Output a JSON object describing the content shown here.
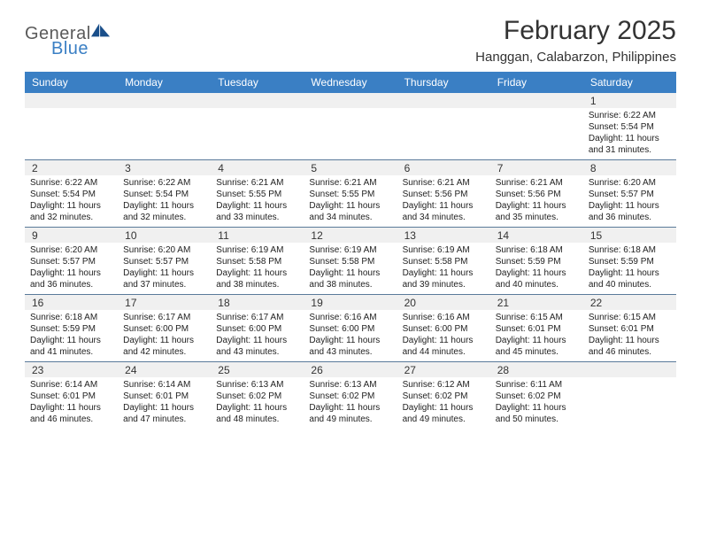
{
  "brand": {
    "text_general": "General",
    "text_blue": "Blue",
    "flag_color": "#1a4f8a",
    "accent_color": "#3a7fc4"
  },
  "title": {
    "month": "February 2025",
    "location": "Hanggan, Calabarzon, Philippines"
  },
  "colors": {
    "header_bg": "#3a7fc4",
    "header_text": "#ffffff",
    "daynum_bg": "#f0f0f0",
    "rule": "#5a7a9a",
    "text": "#222222"
  },
  "day_headers": [
    "Sunday",
    "Monday",
    "Tuesday",
    "Wednesday",
    "Thursday",
    "Friday",
    "Saturday"
  ],
  "weeks": [
    [
      {
        "n": "",
        "sunrise": "",
        "sunset": "",
        "daylight": ""
      },
      {
        "n": "",
        "sunrise": "",
        "sunset": "",
        "daylight": ""
      },
      {
        "n": "",
        "sunrise": "",
        "sunset": "",
        "daylight": ""
      },
      {
        "n": "",
        "sunrise": "",
        "sunset": "",
        "daylight": ""
      },
      {
        "n": "",
        "sunrise": "",
        "sunset": "",
        "daylight": ""
      },
      {
        "n": "",
        "sunrise": "",
        "sunset": "",
        "daylight": ""
      },
      {
        "n": "1",
        "sunrise": "Sunrise: 6:22 AM",
        "sunset": "Sunset: 5:54 PM",
        "daylight": "Daylight: 11 hours and 31 minutes."
      }
    ],
    [
      {
        "n": "2",
        "sunrise": "Sunrise: 6:22 AM",
        "sunset": "Sunset: 5:54 PM",
        "daylight": "Daylight: 11 hours and 32 minutes."
      },
      {
        "n": "3",
        "sunrise": "Sunrise: 6:22 AM",
        "sunset": "Sunset: 5:54 PM",
        "daylight": "Daylight: 11 hours and 32 minutes."
      },
      {
        "n": "4",
        "sunrise": "Sunrise: 6:21 AM",
        "sunset": "Sunset: 5:55 PM",
        "daylight": "Daylight: 11 hours and 33 minutes."
      },
      {
        "n": "5",
        "sunrise": "Sunrise: 6:21 AM",
        "sunset": "Sunset: 5:55 PM",
        "daylight": "Daylight: 11 hours and 34 minutes."
      },
      {
        "n": "6",
        "sunrise": "Sunrise: 6:21 AM",
        "sunset": "Sunset: 5:56 PM",
        "daylight": "Daylight: 11 hours and 34 minutes."
      },
      {
        "n": "7",
        "sunrise": "Sunrise: 6:21 AM",
        "sunset": "Sunset: 5:56 PM",
        "daylight": "Daylight: 11 hours and 35 minutes."
      },
      {
        "n": "8",
        "sunrise": "Sunrise: 6:20 AM",
        "sunset": "Sunset: 5:57 PM",
        "daylight": "Daylight: 11 hours and 36 minutes."
      }
    ],
    [
      {
        "n": "9",
        "sunrise": "Sunrise: 6:20 AM",
        "sunset": "Sunset: 5:57 PM",
        "daylight": "Daylight: 11 hours and 36 minutes."
      },
      {
        "n": "10",
        "sunrise": "Sunrise: 6:20 AM",
        "sunset": "Sunset: 5:57 PM",
        "daylight": "Daylight: 11 hours and 37 minutes."
      },
      {
        "n": "11",
        "sunrise": "Sunrise: 6:19 AM",
        "sunset": "Sunset: 5:58 PM",
        "daylight": "Daylight: 11 hours and 38 minutes."
      },
      {
        "n": "12",
        "sunrise": "Sunrise: 6:19 AM",
        "sunset": "Sunset: 5:58 PM",
        "daylight": "Daylight: 11 hours and 38 minutes."
      },
      {
        "n": "13",
        "sunrise": "Sunrise: 6:19 AM",
        "sunset": "Sunset: 5:58 PM",
        "daylight": "Daylight: 11 hours and 39 minutes."
      },
      {
        "n": "14",
        "sunrise": "Sunrise: 6:18 AM",
        "sunset": "Sunset: 5:59 PM",
        "daylight": "Daylight: 11 hours and 40 minutes."
      },
      {
        "n": "15",
        "sunrise": "Sunrise: 6:18 AM",
        "sunset": "Sunset: 5:59 PM",
        "daylight": "Daylight: 11 hours and 40 minutes."
      }
    ],
    [
      {
        "n": "16",
        "sunrise": "Sunrise: 6:18 AM",
        "sunset": "Sunset: 5:59 PM",
        "daylight": "Daylight: 11 hours and 41 minutes."
      },
      {
        "n": "17",
        "sunrise": "Sunrise: 6:17 AM",
        "sunset": "Sunset: 6:00 PM",
        "daylight": "Daylight: 11 hours and 42 minutes."
      },
      {
        "n": "18",
        "sunrise": "Sunrise: 6:17 AM",
        "sunset": "Sunset: 6:00 PM",
        "daylight": "Daylight: 11 hours and 43 minutes."
      },
      {
        "n": "19",
        "sunrise": "Sunrise: 6:16 AM",
        "sunset": "Sunset: 6:00 PM",
        "daylight": "Daylight: 11 hours and 43 minutes."
      },
      {
        "n": "20",
        "sunrise": "Sunrise: 6:16 AM",
        "sunset": "Sunset: 6:00 PM",
        "daylight": "Daylight: 11 hours and 44 minutes."
      },
      {
        "n": "21",
        "sunrise": "Sunrise: 6:15 AM",
        "sunset": "Sunset: 6:01 PM",
        "daylight": "Daylight: 11 hours and 45 minutes."
      },
      {
        "n": "22",
        "sunrise": "Sunrise: 6:15 AM",
        "sunset": "Sunset: 6:01 PM",
        "daylight": "Daylight: 11 hours and 46 minutes."
      }
    ],
    [
      {
        "n": "23",
        "sunrise": "Sunrise: 6:14 AM",
        "sunset": "Sunset: 6:01 PM",
        "daylight": "Daylight: 11 hours and 46 minutes."
      },
      {
        "n": "24",
        "sunrise": "Sunrise: 6:14 AM",
        "sunset": "Sunset: 6:01 PM",
        "daylight": "Daylight: 11 hours and 47 minutes."
      },
      {
        "n": "25",
        "sunrise": "Sunrise: 6:13 AM",
        "sunset": "Sunset: 6:02 PM",
        "daylight": "Daylight: 11 hours and 48 minutes."
      },
      {
        "n": "26",
        "sunrise": "Sunrise: 6:13 AM",
        "sunset": "Sunset: 6:02 PM",
        "daylight": "Daylight: 11 hours and 49 minutes."
      },
      {
        "n": "27",
        "sunrise": "Sunrise: 6:12 AM",
        "sunset": "Sunset: 6:02 PM",
        "daylight": "Daylight: 11 hours and 49 minutes."
      },
      {
        "n": "28",
        "sunrise": "Sunrise: 6:11 AM",
        "sunset": "Sunset: 6:02 PM",
        "daylight": "Daylight: 11 hours and 50 minutes."
      },
      {
        "n": "",
        "sunrise": "",
        "sunset": "",
        "daylight": ""
      }
    ]
  ]
}
